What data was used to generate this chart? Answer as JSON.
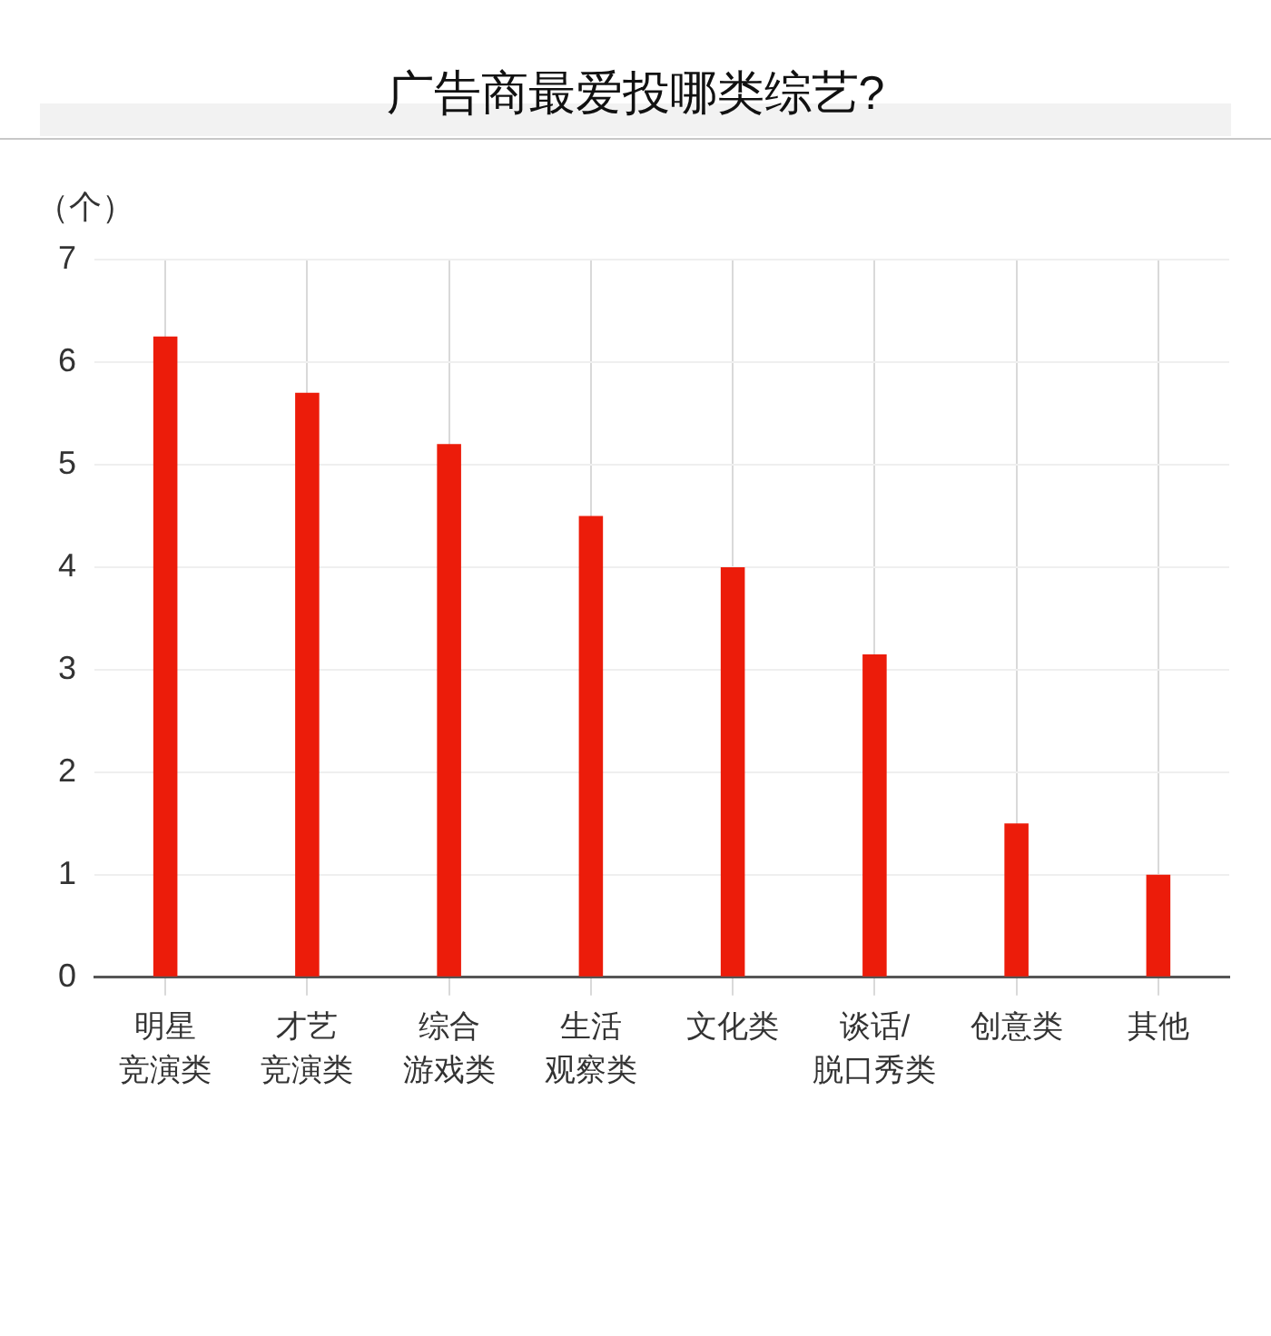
{
  "chart_data": {
    "type": "bar",
    "title": "广告商最爱投哪类综艺?",
    "ylabel": "（个）",
    "categories": [
      "明星竞演类",
      "才艺竞演类",
      "综合游戏类",
      "生活观察类",
      "文化类",
      "谈话/脱口秀类",
      "创意类",
      "其他"
    ],
    "values": [
      6.25,
      5.7,
      5.2,
      4.5,
      4,
      3.15,
      1.5,
      1
    ],
    "color": "#ec1c0a",
    "ylim": [
      0,
      7
    ],
    "yticks": [
      0,
      1,
      2,
      3,
      4,
      5,
      6,
      7
    ],
    "grid": true
  }
}
